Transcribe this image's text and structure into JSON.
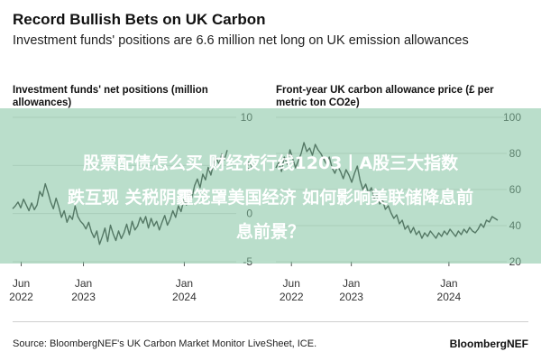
{
  "header": {
    "title": "Record Bullish Bets on UK Carbon",
    "subtitle": "Investment funds' positions are 6.6 million net long on UK emission allowances"
  },
  "overlay": {
    "line1": "股票配债怎么买 财经夜行线1203丨A股三大指数",
    "line2": "跌互现 关税阴霾笼罩美国经济 如何影响美联储降息前",
    "line3": "息前景？"
  },
  "footer": {
    "source": "Source: BloombergNEF's UK Carbon Market Monitor LiveSheet, ICE.",
    "brand": "BloombergNEF"
  },
  "colors": {
    "line": "#1d1d1d",
    "grid": "#d9d9d9",
    "overlay": "#82c3a0"
  },
  "chart_data": [
    {
      "type": "line",
      "title": "Investment funds' net positions (million allowances)",
      "ylim": [
        -5,
        10
      ],
      "yticks": [
        "10",
        "5",
        "0",
        "-5"
      ],
      "xticks": [
        {
          "label": "Jun",
          "sub": "2022"
        },
        {
          "label": "Jan",
          "sub": "2023"
        },
        {
          "label": "Jan",
          "sub": "2024"
        }
      ],
      "grid": true,
      "series": [
        {
          "values": [
            0.5,
            0.8,
            1.2,
            0.6,
            1.5,
            0.9,
            0.3,
            1.1,
            0.4,
            0.9,
            2.3,
            1.8,
            3.1,
            2.2,
            1.2,
            0.5,
            1.6,
            0.7,
            -0.4,
            0.3,
            -0.9,
            -0.2,
            -0.6,
            0.8,
            -0.3,
            -0.8,
            -1.1,
            -1.6,
            -0.9,
            -1.9,
            -2.5,
            -1.8,
            -3.2,
            -2.4,
            -1.5,
            -2.9,
            -1.2,
            -2.1,
            -2.8,
            -1.8,
            -2.6,
            -2.0,
            -1.1,
            -2.2,
            -0.8,
            -1.7,
            -1.3,
            -0.4,
            -1.0,
            -0.3,
            -1.5,
            -0.5,
            -1.3,
            -0.8,
            -1.7,
            -0.9,
            -0.2,
            -1.2,
            -0.6,
            0.3,
            -0.4,
            0.8,
            0.2,
            1.4,
            0.9,
            2.2,
            1.6,
            2.9,
            3.6,
            2.7,
            4.1,
            3.5,
            4.8,
            4.0,
            5.2,
            5.8,
            5.1,
            6.2,
            5.6,
            6.6
          ]
        }
      ]
    },
    {
      "type": "line",
      "title": "Front-year UK carbon allowance price (£ per metric ton CO2e)",
      "ylim": [
        20,
        100
      ],
      "yticks": [
        "100",
        "80",
        "60",
        "40",
        "20"
      ],
      "xticks": [
        {
          "label": "Jun",
          "sub": "2022"
        },
        {
          "label": "Jan",
          "sub": "2023"
        },
        {
          "label": "Jan",
          "sub": "2024"
        }
      ],
      "grid": true,
      "series": [
        {
          "values": [
            72,
            75,
            70,
            78,
            74,
            82,
            77,
            72,
            76,
            80,
            86,
            81,
            83,
            79,
            85,
            82,
            80,
            77,
            74,
            78,
            72,
            69,
            73,
            70,
            66,
            71,
            68,
            64,
            69,
            73,
            65,
            60,
            63,
            58,
            61,
            55,
            57,
            52,
            54,
            49,
            51,
            47,
            44,
            46,
            41,
            43,
            38,
            40,
            36,
            39,
            35,
            37,
            33,
            36,
            34,
            37,
            35,
            33,
            36,
            34,
            37,
            35,
            38,
            36,
            34,
            37,
            35,
            38,
            36,
            39,
            37,
            36,
            38,
            41,
            39,
            43,
            42,
            45,
            44,
            43
          ]
        }
      ]
    }
  ]
}
